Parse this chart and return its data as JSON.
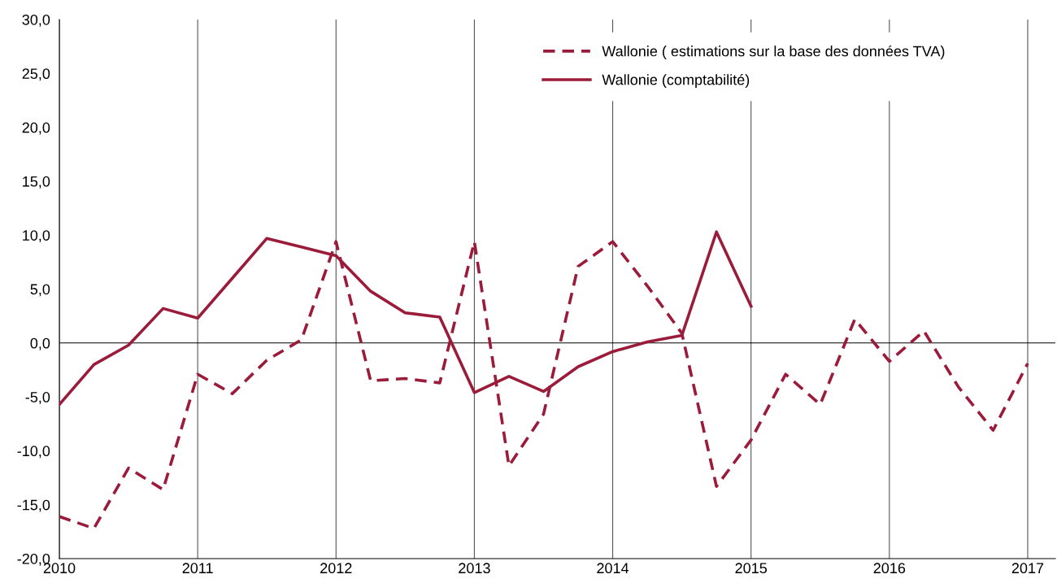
{
  "chart_data": {
    "type": "line",
    "x": [
      2010,
      2010.25,
      2010.5,
      2010.75,
      2011,
      2011.25,
      2011.5,
      2011.75,
      2012,
      2012.25,
      2012.5,
      2012.75,
      2013,
      2013.25,
      2013.5,
      2013.75,
      2014,
      2014.25,
      2014.5,
      2014.75,
      2015,
      2015.25,
      2015.5,
      2015.75,
      2016,
      2016.25,
      2016.5,
      2016.75,
      2017
    ],
    "series": [
      {
        "name": "Wallonie ( estimations sur la base des données TVA)",
        "color": "#9b1b3a",
        "line_style": "dashed",
        "values": [
          -16.1,
          -17.2,
          -11.6,
          -13.6,
          -2.9,
          -4.7,
          -1.6,
          0.3,
          9.4,
          -3.5,
          -3.3,
          -3.7,
          9.4,
          -11.4,
          -6.6,
          7.1,
          9.4,
          5.3,
          0.9,
          -13.3,
          -9.0,
          -2.9,
          -5.7,
          2.2,
          -1.7,
          1.1,
          -4.1,
          -8.1,
          -1.9
        ]
      },
      {
        "name": "Wallonie (comptabilité)",
        "color": "#9b1b3a",
        "line_style": "solid",
        "values": [
          -5.7,
          -2.0,
          -0.2,
          3.2,
          2.3,
          6.0,
          9.7,
          8.9,
          8.1,
          4.8,
          2.8,
          2.4,
          -4.6,
          -3.1,
          -4.5,
          -2.2,
          -0.8,
          0.1,
          0.7,
          10.3,
          3.4,
          null,
          null,
          null,
          null,
          null,
          null,
          null,
          null
        ]
      }
    ],
    "xlim": [
      2010,
      2017.2
    ],
    "xticks": [
      2010,
      2011,
      2012,
      2013,
      2014,
      2015,
      2016,
      2017
    ],
    "ylim": [
      -20,
      30
    ],
    "yticks": [
      {
        "value": -20,
        "label": "-20,0"
      },
      {
        "value": -15,
        "label": "-15,0"
      },
      {
        "value": -10,
        "label": "-10,0"
      },
      {
        "value": -5,
        "label": "-5,0"
      },
      {
        "value": 0,
        "label": "0,0"
      },
      {
        "value": 5,
        "label": "5,0"
      },
      {
        "value": 10,
        "label": "10,0"
      },
      {
        "value": 15,
        "label": "15,0"
      },
      {
        "value": 20,
        "label": "20,0"
      },
      {
        "value": 25,
        "label": "25,0"
      },
      {
        "value": 30,
        "label": "30,0"
      }
    ],
    "ref_lines": [
      {
        "axis": "y",
        "value": 0,
        "color": "#000000"
      }
    ],
    "grid": "x",
    "legend": "top right"
  }
}
